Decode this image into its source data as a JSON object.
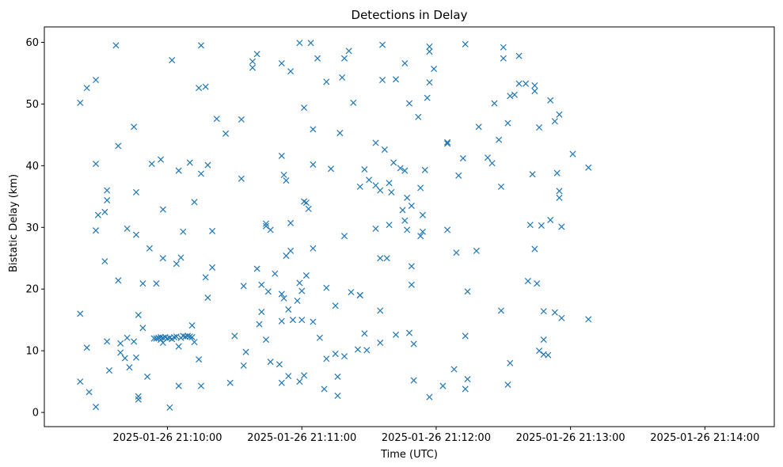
{
  "chart_data": {
    "type": "scatter",
    "title": "Detections in Delay",
    "xlabel": "Time (UTC)",
    "ylabel": "Bistatic Delay (km)",
    "marker": "x",
    "color": "#1f77b4",
    "grid": false,
    "x_tick_labels": [
      "2025-01-26 21:10:00",
      "2025-01-26 21:11:00",
      "2025-01-26 21:12:00",
      "2025-01-26 21:13:00",
      "2025-01-26 21:14:00"
    ],
    "y_ticks": [
      0,
      10,
      20,
      30,
      40,
      50,
      60
    ],
    "xlim": [
      "2025-01-26 21:09:05",
      "2025-01-26 21:14:31"
    ],
    "ylim": [
      -2.3,
      62.5
    ],
    "points": [
      [
        "2025-01-26 21:09:21",
        16.0
      ],
      [
        "2025-01-26 21:09:21",
        5.0
      ],
      [
        "2025-01-26 21:09:21",
        50.2
      ],
      [
        "2025-01-26 21:09:24",
        10.5
      ],
      [
        "2025-01-26 21:09:24",
        52.6
      ],
      [
        "2025-01-26 21:09:25",
        3.3
      ],
      [
        "2025-01-26 21:09:28",
        0.9
      ],
      [
        "2025-01-26 21:09:28",
        29.5
      ],
      [
        "2025-01-26 21:09:28",
        40.3
      ],
      [
        "2025-01-26 21:09:29",
        32.0
      ],
      [
        "2025-01-26 21:09:28",
        53.9
      ],
      [
        "2025-01-26 21:09:32",
        24.5
      ],
      [
        "2025-01-26 21:09:32",
        32.5
      ],
      [
        "2025-01-26 21:09:33",
        36.0
      ],
      [
        "2025-01-26 21:09:33",
        34.4
      ],
      [
        "2025-01-26 21:09:33",
        11.5
      ],
      [
        "2025-01-26 21:09:34",
        6.8
      ],
      [
        "2025-01-26 21:09:37",
        59.5
      ],
      [
        "2025-01-26 21:09:38",
        43.2
      ],
      [
        "2025-01-26 21:09:38",
        21.4
      ],
      [
        "2025-01-26 21:09:39",
        11.2
      ],
      [
        "2025-01-26 21:09:39",
        9.7
      ],
      [
        "2025-01-26 21:09:41",
        8.8
      ],
      [
        "2025-01-26 21:09:42",
        29.8
      ],
      [
        "2025-01-26 21:09:42",
        12.1
      ],
      [
        "2025-01-26 21:09:43",
        7.3
      ],
      [
        "2025-01-26 21:09:45",
        11.5
      ],
      [
        "2025-01-26 21:09:45",
        46.3
      ],
      [
        "2025-01-26 21:09:46",
        35.7
      ],
      [
        "2025-01-26 21:09:46",
        28.8
      ],
      [
        "2025-01-26 21:09:46",
        8.9
      ],
      [
        "2025-01-26 21:09:47",
        2.6
      ],
      [
        "2025-01-26 21:09:47",
        2.1
      ],
      [
        "2025-01-26 21:09:47",
        15.8
      ],
      [
        "2025-01-26 21:09:49",
        20.9
      ],
      [
        "2025-01-26 21:09:49",
        13.7
      ],
      [
        "2025-01-26 21:09:51",
        5.8
      ],
      [
        "2025-01-26 21:09:52",
        26.6
      ],
      [
        "2025-01-26 21:09:53",
        40.3
      ],
      [
        "2025-01-26 21:09:54",
        12.0
      ],
      [
        "2025-01-26 21:09:55",
        12.0
      ],
      [
        "2025-01-26 21:09:55",
        20.9
      ],
      [
        "2025-01-26 21:09:56",
        12.1
      ],
      [
        "2025-01-26 21:09:57",
        12.2
      ],
      [
        "2025-01-26 21:09:57",
        41.0
      ],
      [
        "2025-01-26 21:09:57",
        11.8
      ],
      [
        "2025-01-26 21:09:58",
        11.3
      ],
      [
        "2025-01-26 21:09:58",
        12.1
      ],
      [
        "2025-01-26 21:09:58",
        32.9
      ],
      [
        "2025-01-26 21:09:58",
        25.0
      ],
      [
        "2025-01-26 21:09:59",
        12.2
      ],
      [
        "2025-01-26 21:10:00",
        12.0
      ],
      [
        "2025-01-26 21:10:01",
        0.8
      ],
      [
        "2025-01-26 21:10:01",
        12.1
      ],
      [
        "2025-01-26 21:10:02",
        57.1
      ],
      [
        "2025-01-26 21:10:02",
        11.9
      ],
      [
        "2025-01-26 21:10:03",
        12.2
      ],
      [
        "2025-01-26 21:10:04",
        24.1
      ],
      [
        "2025-01-26 21:10:04",
        12.3
      ],
      [
        "2025-01-26 21:10:05",
        39.2
      ],
      [
        "2025-01-26 21:10:05",
        10.7
      ],
      [
        "2025-01-26 21:10:05",
        4.3
      ],
      [
        "2025-01-26 21:10:06",
        12.1
      ],
      [
        "2025-01-26 21:10:06",
        25.1
      ],
      [
        "2025-01-26 21:10:07",
        29.3
      ],
      [
        "2025-01-26 21:10:07",
        12.4
      ],
      [
        "2025-01-26 21:10:08",
        12.3
      ],
      [
        "2025-01-26 21:10:09",
        12.4
      ],
      [
        "2025-01-26 21:10:10",
        12.3
      ],
      [
        "2025-01-26 21:10:10",
        40.5
      ],
      [
        "2025-01-26 21:10:11",
        14.1
      ],
      [
        "2025-01-26 21:10:11",
        12.2
      ],
      [
        "2025-01-26 21:10:12",
        11.4
      ],
      [
        "2025-01-26 21:10:12",
        34.1
      ],
      [
        "2025-01-26 21:10:14",
        8.6
      ],
      [
        "2025-01-26 21:10:14",
        52.6
      ],
      [
        "2025-01-26 21:10:15",
        59.5
      ],
      [
        "2025-01-26 21:10:15",
        38.7
      ],
      [
        "2025-01-26 21:10:15",
        4.3
      ],
      [
        "2025-01-26 21:10:17",
        52.8
      ],
      [
        "2025-01-26 21:10:17",
        21.9
      ],
      [
        "2025-01-26 21:10:18",
        40.1
      ],
      [
        "2025-01-26 21:10:18",
        18.6
      ],
      [
        "2025-01-26 21:10:20",
        29.4
      ],
      [
        "2025-01-26 21:10:20",
        23.5
      ],
      [
        "2025-01-26 21:10:22",
        47.6
      ],
      [
        "2025-01-26 21:10:26",
        45.2
      ],
      [
        "2025-01-26 21:10:28",
        4.8
      ],
      [
        "2025-01-26 21:10:30",
        12.4
      ],
      [
        "2025-01-26 21:10:33",
        47.5
      ],
      [
        "2025-01-26 21:10:33",
        37.9
      ],
      [
        "2025-01-26 21:10:34",
        20.5
      ],
      [
        "2025-01-26 21:10:34",
        7.6
      ],
      [
        "2025-01-26 21:10:35",
        9.8
      ],
      [
        "2025-01-26 21:10:38",
        56.9
      ],
      [
        "2025-01-26 21:10:38",
        55.9
      ],
      [
        "2025-01-26 21:10:40",
        58.1
      ],
      [
        "2025-01-26 21:10:40",
        23.3
      ],
      [
        "2025-01-26 21:10:41",
        14.3
      ],
      [
        "2025-01-26 21:10:42",
        20.7
      ],
      [
        "2025-01-26 21:10:42",
        16.3
      ],
      [
        "2025-01-26 21:10:44",
        11.8
      ],
      [
        "2025-01-26 21:10:44",
        30.6
      ],
      [
        "2025-01-26 21:10:44",
        30.2
      ],
      [
        "2025-01-26 21:10:45",
        19.6
      ],
      [
        "2025-01-26 21:10:46",
        29.6
      ],
      [
        "2025-01-26 21:10:46",
        8.2
      ],
      [
        "2025-01-26 21:10:48",
        22.5
      ],
      [
        "2025-01-26 21:10:50",
        7.8
      ],
      [
        "2025-01-26 21:10:51",
        56.6
      ],
      [
        "2025-01-26 21:10:51",
        41.6
      ],
      [
        "2025-01-26 21:10:51",
        19.2
      ],
      [
        "2025-01-26 21:10:51",
        14.8
      ],
      [
        "2025-01-26 21:10:51",
        4.8
      ],
      [
        "2025-01-26 21:10:52",
        38.5
      ],
      [
        "2025-01-26 21:10:52",
        18.5
      ],
      [
        "2025-01-26 21:10:53",
        37.6
      ],
      [
        "2025-01-26 21:10:53",
        25.4
      ],
      [
        "2025-01-26 21:10:54",
        16.7
      ],
      [
        "2025-01-26 21:10:54",
        5.9
      ],
      [
        "2025-01-26 21:10:55",
        55.3
      ],
      [
        "2025-01-26 21:10:55",
        30.7
      ],
      [
        "2025-01-26 21:10:55",
        26.2
      ],
      [
        "2025-01-26 21:10:56",
        15.0
      ],
      [
        "2025-01-26 21:10:58",
        18.1
      ],
      [
        "2025-01-26 21:10:59",
        59.9
      ],
      [
        "2025-01-26 21:10:59",
        21.0
      ],
      [
        "2025-01-26 21:10:59",
        5.0
      ],
      [
        "2025-01-26 21:11:00",
        19.7
      ],
      [
        "2025-01-26 21:11:00",
        15.0
      ],
      [
        "2025-01-26 21:11:01",
        49.4
      ],
      [
        "2025-01-26 21:11:01",
        34.2
      ],
      [
        "2025-01-26 21:11:01",
        6.0
      ],
      [
        "2025-01-26 21:11:02",
        34.0
      ],
      [
        "2025-01-26 21:11:02",
        22.2
      ],
      [
        "2025-01-26 21:11:03",
        33.0
      ],
      [
        "2025-01-26 21:11:04",
        59.9
      ],
      [
        "2025-01-26 21:11:05",
        26.6
      ],
      [
        "2025-01-26 21:11:05",
        14.7
      ],
      [
        "2025-01-26 21:11:05",
        45.9
      ],
      [
        "2025-01-26 21:11:05",
        40.2
      ],
      [
        "2025-01-26 21:11:07",
        57.4
      ],
      [
        "2025-01-26 21:11:08",
        12.1
      ],
      [
        "2025-01-26 21:11:10",
        3.8
      ],
      [
        "2025-01-26 21:11:11",
        53.6
      ],
      [
        "2025-01-26 21:11:11",
        20.2
      ],
      [
        "2025-01-26 21:11:11",
        8.7
      ],
      [
        "2025-01-26 21:11:13",
        39.5
      ],
      [
        "2025-01-26 21:11:15",
        17.3
      ],
      [
        "2025-01-26 21:11:15",
        9.5
      ],
      [
        "2025-01-26 21:11:16",
        5.8
      ],
      [
        "2025-01-26 21:11:16",
        2.7
      ],
      [
        "2025-01-26 21:11:17",
        45.3
      ],
      [
        "2025-01-26 21:11:18",
        54.3
      ],
      [
        "2025-01-26 21:11:19",
        57.4
      ],
      [
        "2025-01-26 21:11:19",
        28.6
      ],
      [
        "2025-01-26 21:11:19",
        9.1
      ],
      [
        "2025-01-26 21:11:21",
        58.6
      ],
      [
        "2025-01-26 21:11:22",
        19.5
      ],
      [
        "2025-01-26 21:11:23",
        50.2
      ],
      [
        "2025-01-26 21:11:25",
        10.2
      ],
      [
        "2025-01-26 21:11:26",
        36.6
      ],
      [
        "2025-01-26 21:11:26",
        19.0
      ],
      [
        "2025-01-26 21:11:26",
        19.0
      ],
      [
        "2025-01-26 21:11:28",
        39.4
      ],
      [
        "2025-01-26 21:11:28",
        12.8
      ],
      [
        "2025-01-26 21:11:29",
        10.1
      ],
      [
        "2025-01-26 21:11:30",
        37.7
      ],
      [
        "2025-01-26 21:11:33",
        43.7
      ],
      [
        "2025-01-26 21:11:33",
        36.8
      ],
      [
        "2025-01-26 21:11:33",
        29.8
      ],
      [
        "2025-01-26 21:11:35",
        36.0
      ],
      [
        "2025-01-26 21:11:35",
        25.0
      ],
      [
        "2025-01-26 21:11:35",
        16.5
      ],
      [
        "2025-01-26 21:11:35",
        11.3
      ],
      [
        "2025-01-26 21:11:36",
        59.6
      ],
      [
        "2025-01-26 21:11:36",
        53.9
      ],
      [
        "2025-01-26 21:11:37",
        42.6
      ],
      [
        "2025-01-26 21:11:38",
        25.0
      ],
      [
        "2025-01-26 21:11:39",
        37.2
      ],
      [
        "2025-01-26 21:11:39",
        30.4
      ],
      [
        "2025-01-26 21:11:40",
        35.7
      ],
      [
        "2025-01-26 21:11:41",
        40.5
      ],
      [
        "2025-01-26 21:11:42",
        54.0
      ],
      [
        "2025-01-26 21:11:42",
        12.6
      ],
      [
        "2025-01-26 21:11:44",
        39.6
      ],
      [
        "2025-01-26 21:11:45",
        32.8
      ],
      [
        "2025-01-26 21:11:46",
        56.6
      ],
      [
        "2025-01-26 21:11:46",
        39.2
      ],
      [
        "2025-01-26 21:11:46",
        31.1
      ],
      [
        "2025-01-26 21:11:47",
        34.8
      ],
      [
        "2025-01-26 21:11:47",
        29.6
      ],
      [
        "2025-01-26 21:11:48",
        12.9
      ],
      [
        "2025-01-26 21:11:48",
        50.1
      ],
      [
        "2025-01-26 21:11:49",
        33.5
      ],
      [
        "2025-01-26 21:11:49",
        23.7
      ],
      [
        "2025-01-26 21:11:49",
        20.7
      ],
      [
        "2025-01-26 21:11:50",
        5.2
      ],
      [
        "2025-01-26 21:11:50",
        11.1
      ],
      [
        "2025-01-26 21:11:52",
        47.9
      ],
      [
        "2025-01-26 21:11:53",
        36.4
      ],
      [
        "2025-01-26 21:11:53",
        28.6
      ],
      [
        "2025-01-26 21:11:54",
        32.0
      ],
      [
        "2025-01-26 21:11:54",
        29.3
      ],
      [
        "2025-01-26 21:11:55",
        39.3
      ],
      [
        "2025-01-26 21:11:56",
        51.0
      ],
      [
        "2025-01-26 21:11:57",
        59.3
      ],
      [
        "2025-01-26 21:11:57",
        58.5
      ],
      [
        "2025-01-26 21:11:57",
        53.5
      ],
      [
        "2025-01-26 21:11:57",
        2.5
      ],
      [
        "2025-01-26 21:11:59",
        55.7
      ],
      [
        "2025-01-26 21:12:03",
        4.3
      ],
      [
        "2025-01-26 21:12:05",
        43.8
      ],
      [
        "2025-01-26 21:12:05",
        43.6
      ],
      [
        "2025-01-26 21:12:05",
        29.6
      ],
      [
        "2025-01-26 21:12:08",
        7.0
      ],
      [
        "2025-01-26 21:12:09",
        25.9
      ],
      [
        "2025-01-26 21:12:10",
        38.4
      ],
      [
        "2025-01-26 21:12:12",
        41.2
      ],
      [
        "2025-01-26 21:12:13",
        59.7
      ],
      [
        "2025-01-26 21:12:13",
        12.4
      ],
      [
        "2025-01-26 21:12:13",
        3.8
      ],
      [
        "2025-01-26 21:12:14",
        19.6
      ],
      [
        "2025-01-26 21:12:14",
        5.4
      ],
      [
        "2025-01-26 21:12:18",
        26.2
      ],
      [
        "2025-01-26 21:12:19",
        46.3
      ],
      [
        "2025-01-26 21:12:23",
        41.3
      ],
      [
        "2025-01-26 21:12:25",
        40.4
      ],
      [
        "2025-01-26 21:12:26",
        50.1
      ],
      [
        "2025-01-26 21:12:28",
        44.2
      ],
      [
        "2025-01-26 21:12:29",
        36.6
      ],
      [
        "2025-01-26 21:12:29",
        16.5
      ],
      [
        "2025-01-26 21:12:30",
        59.2
      ],
      [
        "2025-01-26 21:12:30",
        57.4
      ],
      [
        "2025-01-26 21:12:32",
        46.9
      ],
      [
        "2025-01-26 21:12:32",
        4.5
      ],
      [
        "2025-01-26 21:12:33",
        51.3
      ],
      [
        "2025-01-26 21:12:33",
        8.0
      ],
      [
        "2025-01-26 21:12:35",
        51.5
      ],
      [
        "2025-01-26 21:12:37",
        57.8
      ],
      [
        "2025-01-26 21:12:37",
        53.3
      ],
      [
        "2025-01-26 21:12:40",
        53.3
      ],
      [
        "2025-01-26 21:12:41",
        21.3
      ],
      [
        "2025-01-26 21:12:42",
        30.4
      ],
      [
        "2025-01-26 21:12:43",
        38.6
      ],
      [
        "2025-01-26 21:12:44",
        53.0
      ],
      [
        "2025-01-26 21:12:44",
        52.1
      ],
      [
        "2025-01-26 21:12:44",
        26.5
      ],
      [
        "2025-01-26 21:12:45",
        20.9
      ],
      [
        "2025-01-26 21:12:46",
        46.2
      ],
      [
        "2025-01-26 21:12:46",
        10.0
      ],
      [
        "2025-01-26 21:12:47",
        30.3
      ],
      [
        "2025-01-26 21:12:48",
        16.4
      ],
      [
        "2025-01-26 21:12:48",
        11.8
      ],
      [
        "2025-01-26 21:12:48",
        9.4
      ],
      [
        "2025-01-26 21:12:50",
        9.3
      ],
      [
        "2025-01-26 21:12:51",
        50.6
      ],
      [
        "2025-01-26 21:12:51",
        31.2
      ],
      [
        "2025-01-26 21:12:53",
        47.2
      ],
      [
        "2025-01-26 21:12:53",
        16.2
      ],
      [
        "2025-01-26 21:12:54",
        38.8
      ],
      [
        "2025-01-26 21:12:55",
        48.3
      ],
      [
        "2025-01-26 21:12:55",
        35.9
      ],
      [
        "2025-01-26 21:12:55",
        34.8
      ],
      [
        "2025-01-26 21:12:56",
        30.1
      ],
      [
        "2025-01-26 21:12:56",
        15.3
      ],
      [
        "2025-01-26 21:13:01",
        41.9
      ],
      [
        "2025-01-26 21:13:08",
        39.7
      ],
      [
        "2025-01-26 21:13:08",
        15.1
      ]
    ]
  }
}
